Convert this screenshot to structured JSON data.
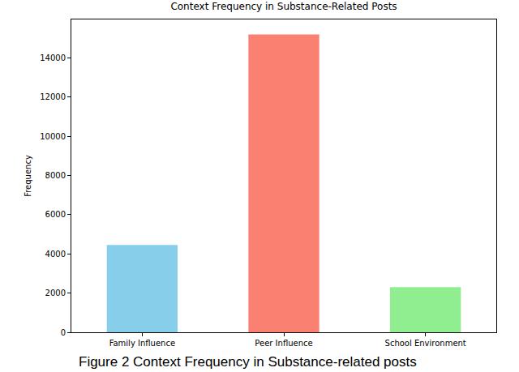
{
  "chart_data": {
    "type": "bar",
    "title": "Context Frequency in Substance-Related Posts",
    "caption": "Figure 2 Context Frequency in Substance-related posts",
    "y_label": "Frequency",
    "categories": [
      "Family Influence",
      "Peer Influence",
      "School Environment"
    ],
    "values": [
      4450,
      15200,
      2300
    ],
    "colors": [
      "#87ceeb",
      "#fa8072",
      "#90ee90"
    ],
    "ylim": [
      0,
      15960
    ],
    "yticks": [
      0,
      2000,
      4000,
      6000,
      8000,
      10000,
      12000,
      14000
    ],
    "grid": false
  }
}
